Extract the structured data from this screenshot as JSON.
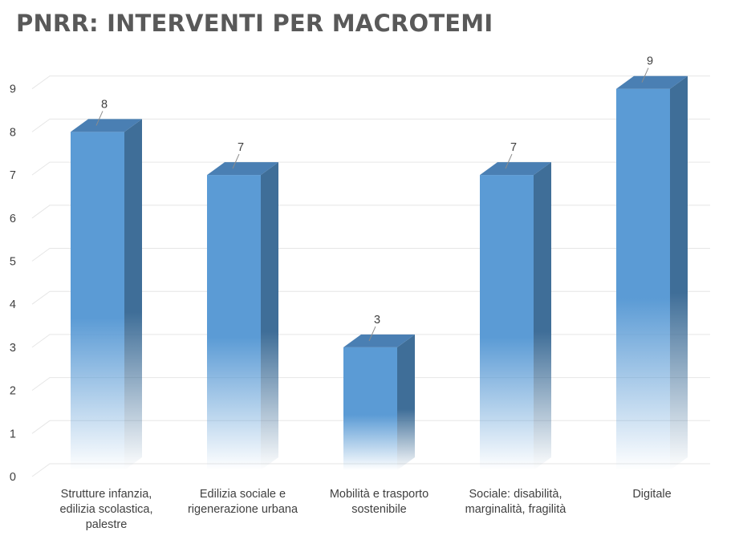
{
  "chart_data": {
    "type": "bar",
    "title": "PNRR: INTERVENTI PER MACROTEMI",
    "categories": [
      [
        "Strutture infanzia,",
        "edilizia scolastica,",
        "palestre"
      ],
      [
        "Edilizia sociale e",
        "rigenerazione urbana"
      ],
      [
        "Mobilità e trasporto",
        "sostenibile"
      ],
      [
        "Sociale: disabilità,",
        "marginalità, fragilità"
      ],
      [
        "Digitale"
      ]
    ],
    "values": [
      8,
      7,
      3,
      7,
      9
    ],
    "data_labels": [
      "8",
      "7",
      "3",
      "7",
      "9"
    ],
    "ylim": [
      0,
      9
    ],
    "yticks": [
      "0",
      "1",
      "2",
      "3",
      "4",
      "5",
      "6",
      "7",
      "8",
      "9"
    ],
    "grid": true,
    "style": "3d-column",
    "colors": {
      "front": "#5b9bd5",
      "side": "#3f6e98",
      "top": "#4a7fb3",
      "grid": "#e6e6e6"
    }
  }
}
